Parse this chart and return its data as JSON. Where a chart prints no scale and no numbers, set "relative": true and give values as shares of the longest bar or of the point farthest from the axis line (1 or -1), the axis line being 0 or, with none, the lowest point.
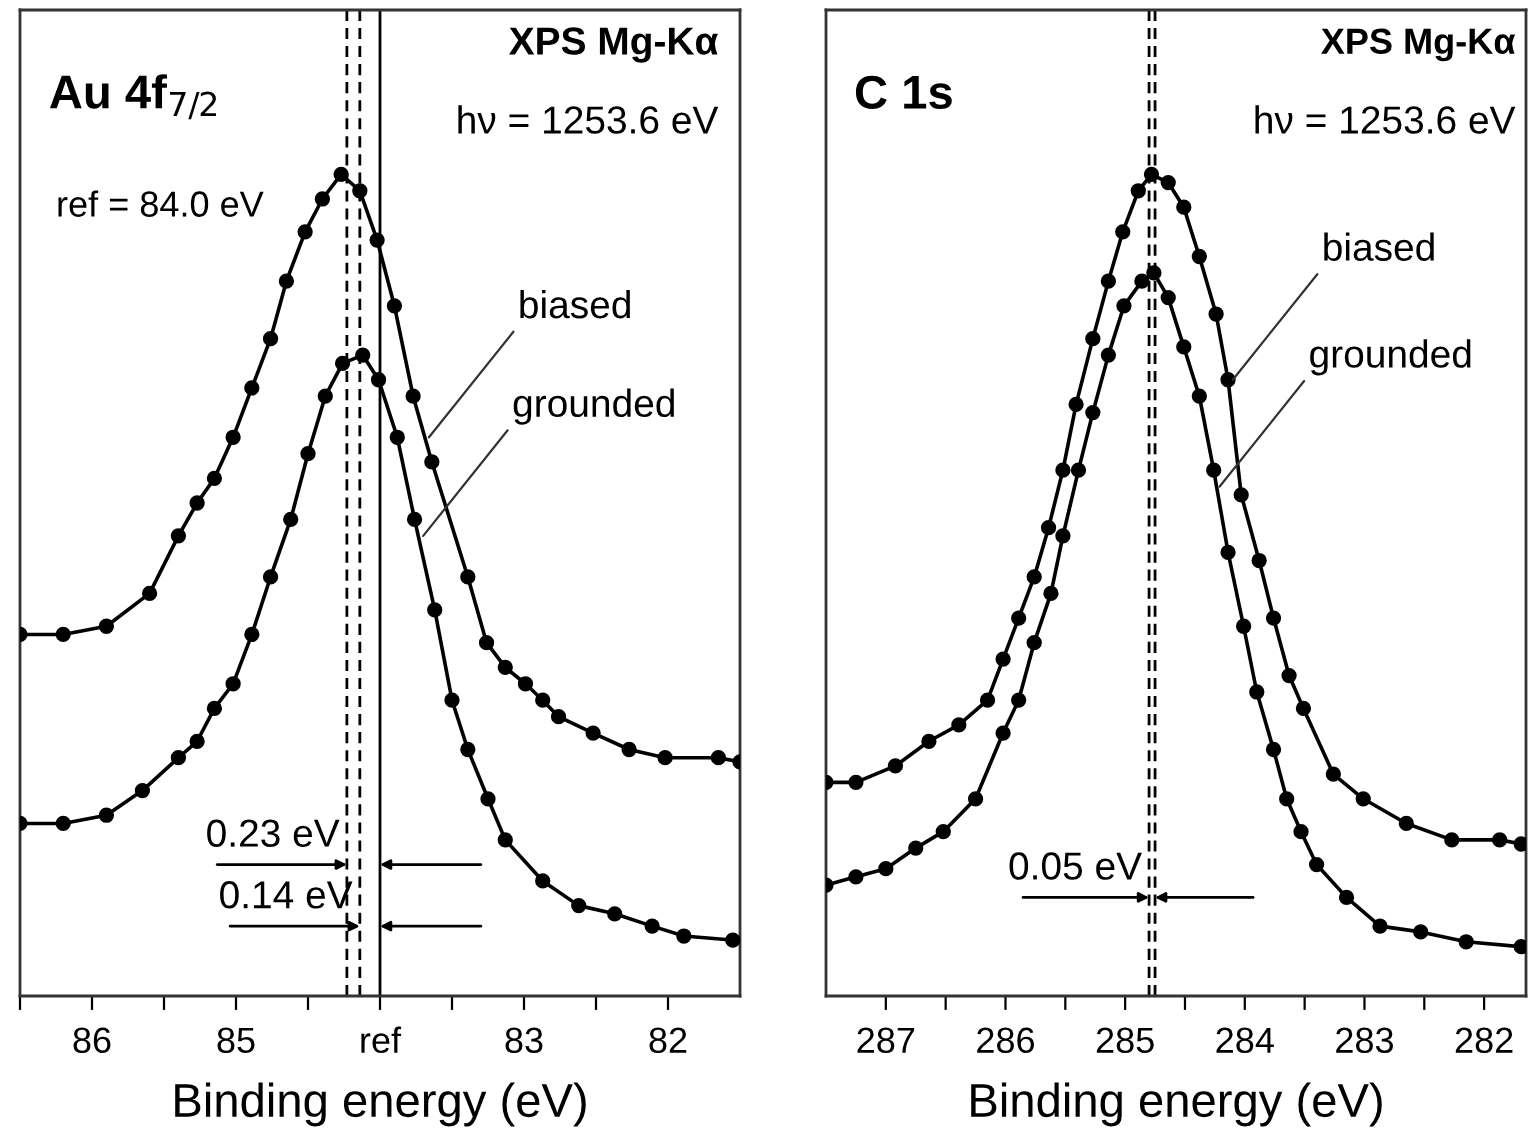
{
  "chart_data": [
    {
      "type": "line",
      "title": "Au 4f$_{7/2}$",
      "xlabel": "Binding energy (eV)",
      "relative": true,
      "tick_labels": "x",
      "grid": false,
      "marker": "circle",
      "line_style": "solid",
      "xlim": [
        86.5,
        81.5
      ],
      "xticks": [
        {
          "value": 86.5,
          "label": null
        },
        86,
        {
          "value": 85.5,
          "label": null
        },
        85,
        {
          "value": 84.5,
          "label": null
        },
        {
          "value": 84,
          "label": "ref"
        },
        {
          "value": 83.5,
          "label": null
        },
        83,
        {
          "value": 82.5,
          "label": null
        },
        82
      ],
      "series": [
        {
          "color": "#000000",
          "x": [
            86.5,
            86.2,
            85.9,
            85.6,
            85.4,
            85.27,
            85.15,
            85.02,
            84.89,
            84.76,
            84.65,
            84.52,
            84.4,
            84.27,
            84.14,
            84.02,
            83.9,
            83.77,
            83.64,
            83.39,
            83.26,
            83.13,
            82.99,
            82.87,
            82.76,
            82.52,
            82.27,
            82.02,
            81.65,
            81.5
          ],
          "values": [
            0.44,
            0.44,
            0.45,
            0.49,
            0.56,
            0.6,
            0.63,
            0.68,
            0.74,
            0.8,
            0.87,
            0.93,
            0.97,
            1.0,
            0.98,
            0.92,
            0.84,
            0.73,
            0.65,
            0.51,
            0.43,
            0.4,
            0.38,
            0.36,
            0.34,
            0.32,
            0.3,
            0.29,
            0.29,
            0.285
          ]
        },
        {
          "color": "#000000",
          "x": [
            86.5,
            86.2,
            85.9,
            85.65,
            85.4,
            85.27,
            85.15,
            85.02,
            84.89,
            84.76,
            84.62,
            84.5,
            84.38,
            84.26,
            84.12,
            84.01,
            83.88,
            83.76,
            83.62,
            83.5,
            83.39,
            83.25,
            83.13,
            82.87,
            82.62,
            82.37,
            82.11,
            81.89,
            81.55
          ],
          "values": [
            0.21,
            0.21,
            0.22,
            0.25,
            0.29,
            0.31,
            0.35,
            0.38,
            0.44,
            0.51,
            0.58,
            0.66,
            0.73,
            0.77,
            0.78,
            0.75,
            0.68,
            0.58,
            0.47,
            0.36,
            0.3,
            0.24,
            0.19,
            0.14,
            0.11,
            0.1,
            0.085,
            0.073,
            0.068
          ]
        }
      ],
      "ref_lines": [
        {
          "axis": "x",
          "value": 84.23,
          "line_style": "dashed",
          "color": "#000000"
        },
        {
          "axis": "x",
          "value": 84.14,
          "line_style": "dashed",
          "color": "#000000"
        },
        {
          "axis": "x",
          "value": 84.0,
          "line_style": "solid",
          "color": "#000000"
        }
      ],
      "annotations": [
        "XPS Mg-Kα",
        "hν = 1253.6 eV",
        "ref = 84.0 eV",
        {
          "text": "0.23 eV",
          "x": 84.23,
          "y": 0.16
        },
        {
          "text": "0.14 eV",
          "x": 84.14,
          "y": 0.085
        },
        {
          "text": "biased",
          "x": 83.66,
          "y": 0.68
        },
        {
          "text": "grounded",
          "x": 83.7,
          "y": 0.56
        }
      ]
    },
    {
      "type": "line",
      "title": "C 1s",
      "xlabel": "Binding energy (eV)",
      "relative": true,
      "tick_labels": "x",
      "grid": false,
      "marker": "circle",
      "line_style": "solid",
      "xlim": [
        287.5,
        281.65
      ],
      "xticks": [
        287,
        {
          "value": 286.5,
          "label": null
        },
        286,
        {
          "value": 285.5,
          "label": null
        },
        285,
        {
          "value": 284.5,
          "label": null
        },
        284,
        {
          "value": 283.5,
          "label": null
        },
        283,
        {
          "value": 282.5,
          "label": null
        },
        282
      ],
      "series": [
        {
          "color": "#000000",
          "x": [
            287.5,
            287.25,
            286.92,
            286.64,
            286.39,
            286.15,
            286.02,
            285.89,
            285.76,
            285.64,
            285.52,
            285.41,
            285.27,
            285.14,
            285.02,
            284.89,
            284.78,
            284.64,
            284.51,
            284.38,
            284.24,
            284.14,
            284.03,
            283.88,
            283.76,
            283.63,
            283.51,
            283.26,
            283.01,
            282.65,
            282.27,
            281.87,
            281.69
          ],
          "values": [
            0.26,
            0.26,
            0.28,
            0.31,
            0.33,
            0.36,
            0.41,
            0.46,
            0.51,
            0.57,
            0.64,
            0.72,
            0.8,
            0.87,
            0.93,
            0.98,
            1.0,
            0.99,
            0.96,
            0.9,
            0.83,
            0.75,
            0.61,
            0.53,
            0.46,
            0.39,
            0.35,
            0.27,
            0.24,
            0.21,
            0.19,
            0.19,
            0.185
          ]
        },
        {
          "color": "#000000",
          "x": [
            287.5,
            287.25,
            287.0,
            286.75,
            286.52,
            286.25,
            286.02,
            285.89,
            285.76,
            285.62,
            285.52,
            285.39,
            285.27,
            285.14,
            285.01,
            284.86,
            284.76,
            284.64,
            284.51,
            284.38,
            284.26,
            284.14,
            284.01,
            283.9,
            283.76,
            283.65,
            283.53,
            283.4,
            283.15,
            282.87,
            282.53,
            282.15,
            281.69
          ],
          "values": [
            0.135,
            0.145,
            0.155,
            0.18,
            0.2,
            0.24,
            0.32,
            0.36,
            0.43,
            0.49,
            0.56,
            0.64,
            0.71,
            0.78,
            0.84,
            0.87,
            0.88,
            0.85,
            0.79,
            0.73,
            0.64,
            0.54,
            0.45,
            0.37,
            0.3,
            0.24,
            0.2,
            0.16,
            0.12,
            0.085,
            0.078,
            0.066,
            0.06
          ]
        }
      ],
      "ref_lines": [
        {
          "axis": "x",
          "value": 284.8,
          "line_style": "dashed",
          "color": "#000000"
        },
        {
          "axis": "x",
          "value": 284.75,
          "line_style": "dashed",
          "color": "#000000"
        }
      ],
      "annotations": [
        "XPS Mg-Kα",
        "hν = 1253.6 eV",
        {
          "text": "0.05 eV",
          "x": 284.8,
          "y": 0.12
        },
        {
          "text": "biased",
          "x": 284.1,
          "y": 0.75
        },
        {
          "text": "grounded",
          "x": 284.21,
          "y": 0.62
        }
      ]
    }
  ]
}
